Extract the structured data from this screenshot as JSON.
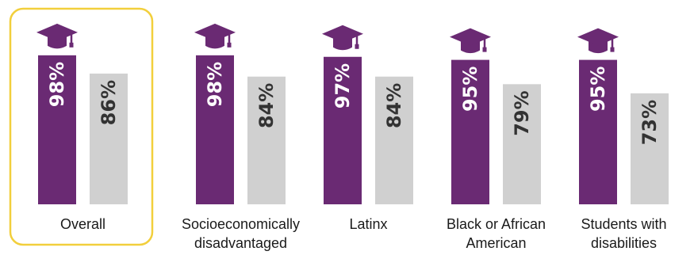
{
  "chart_data": {
    "type": "bar",
    "title": "",
    "xlabel": "",
    "ylabel": "",
    "ylim": [
      0,
      100
    ],
    "highlight_group": "Overall",
    "categories": [
      [
        "Overall"
      ],
      [
        "Socioeconomically",
        "disadvantaged"
      ],
      [
        "Latinx"
      ],
      [
        "Black or African",
        "American"
      ],
      [
        "Students with",
        "disabilities"
      ]
    ],
    "series": [
      {
        "values": [
          98,
          98,
          97,
          95,
          95
        ],
        "labels": [
          "98%",
          "98%",
          "97%",
          "95%",
          "95%"
        ],
        "color": "#6a2a73"
      },
      {
        "values": [
          86,
          84,
          84,
          79,
          73
        ],
        "labels": [
          "86%",
          "84%",
          "84%",
          "79%",
          "73%"
        ],
        "color": "#d0d0d0"
      }
    ],
    "icon": "graduation-cap-icon",
    "colors": {
      "primary": "#6a2a73",
      "secondary": "#d0d0d0",
      "highlight_border": "#f2cf3c",
      "primary_label": "#ffffff",
      "secondary_label": "#333333"
    }
  }
}
